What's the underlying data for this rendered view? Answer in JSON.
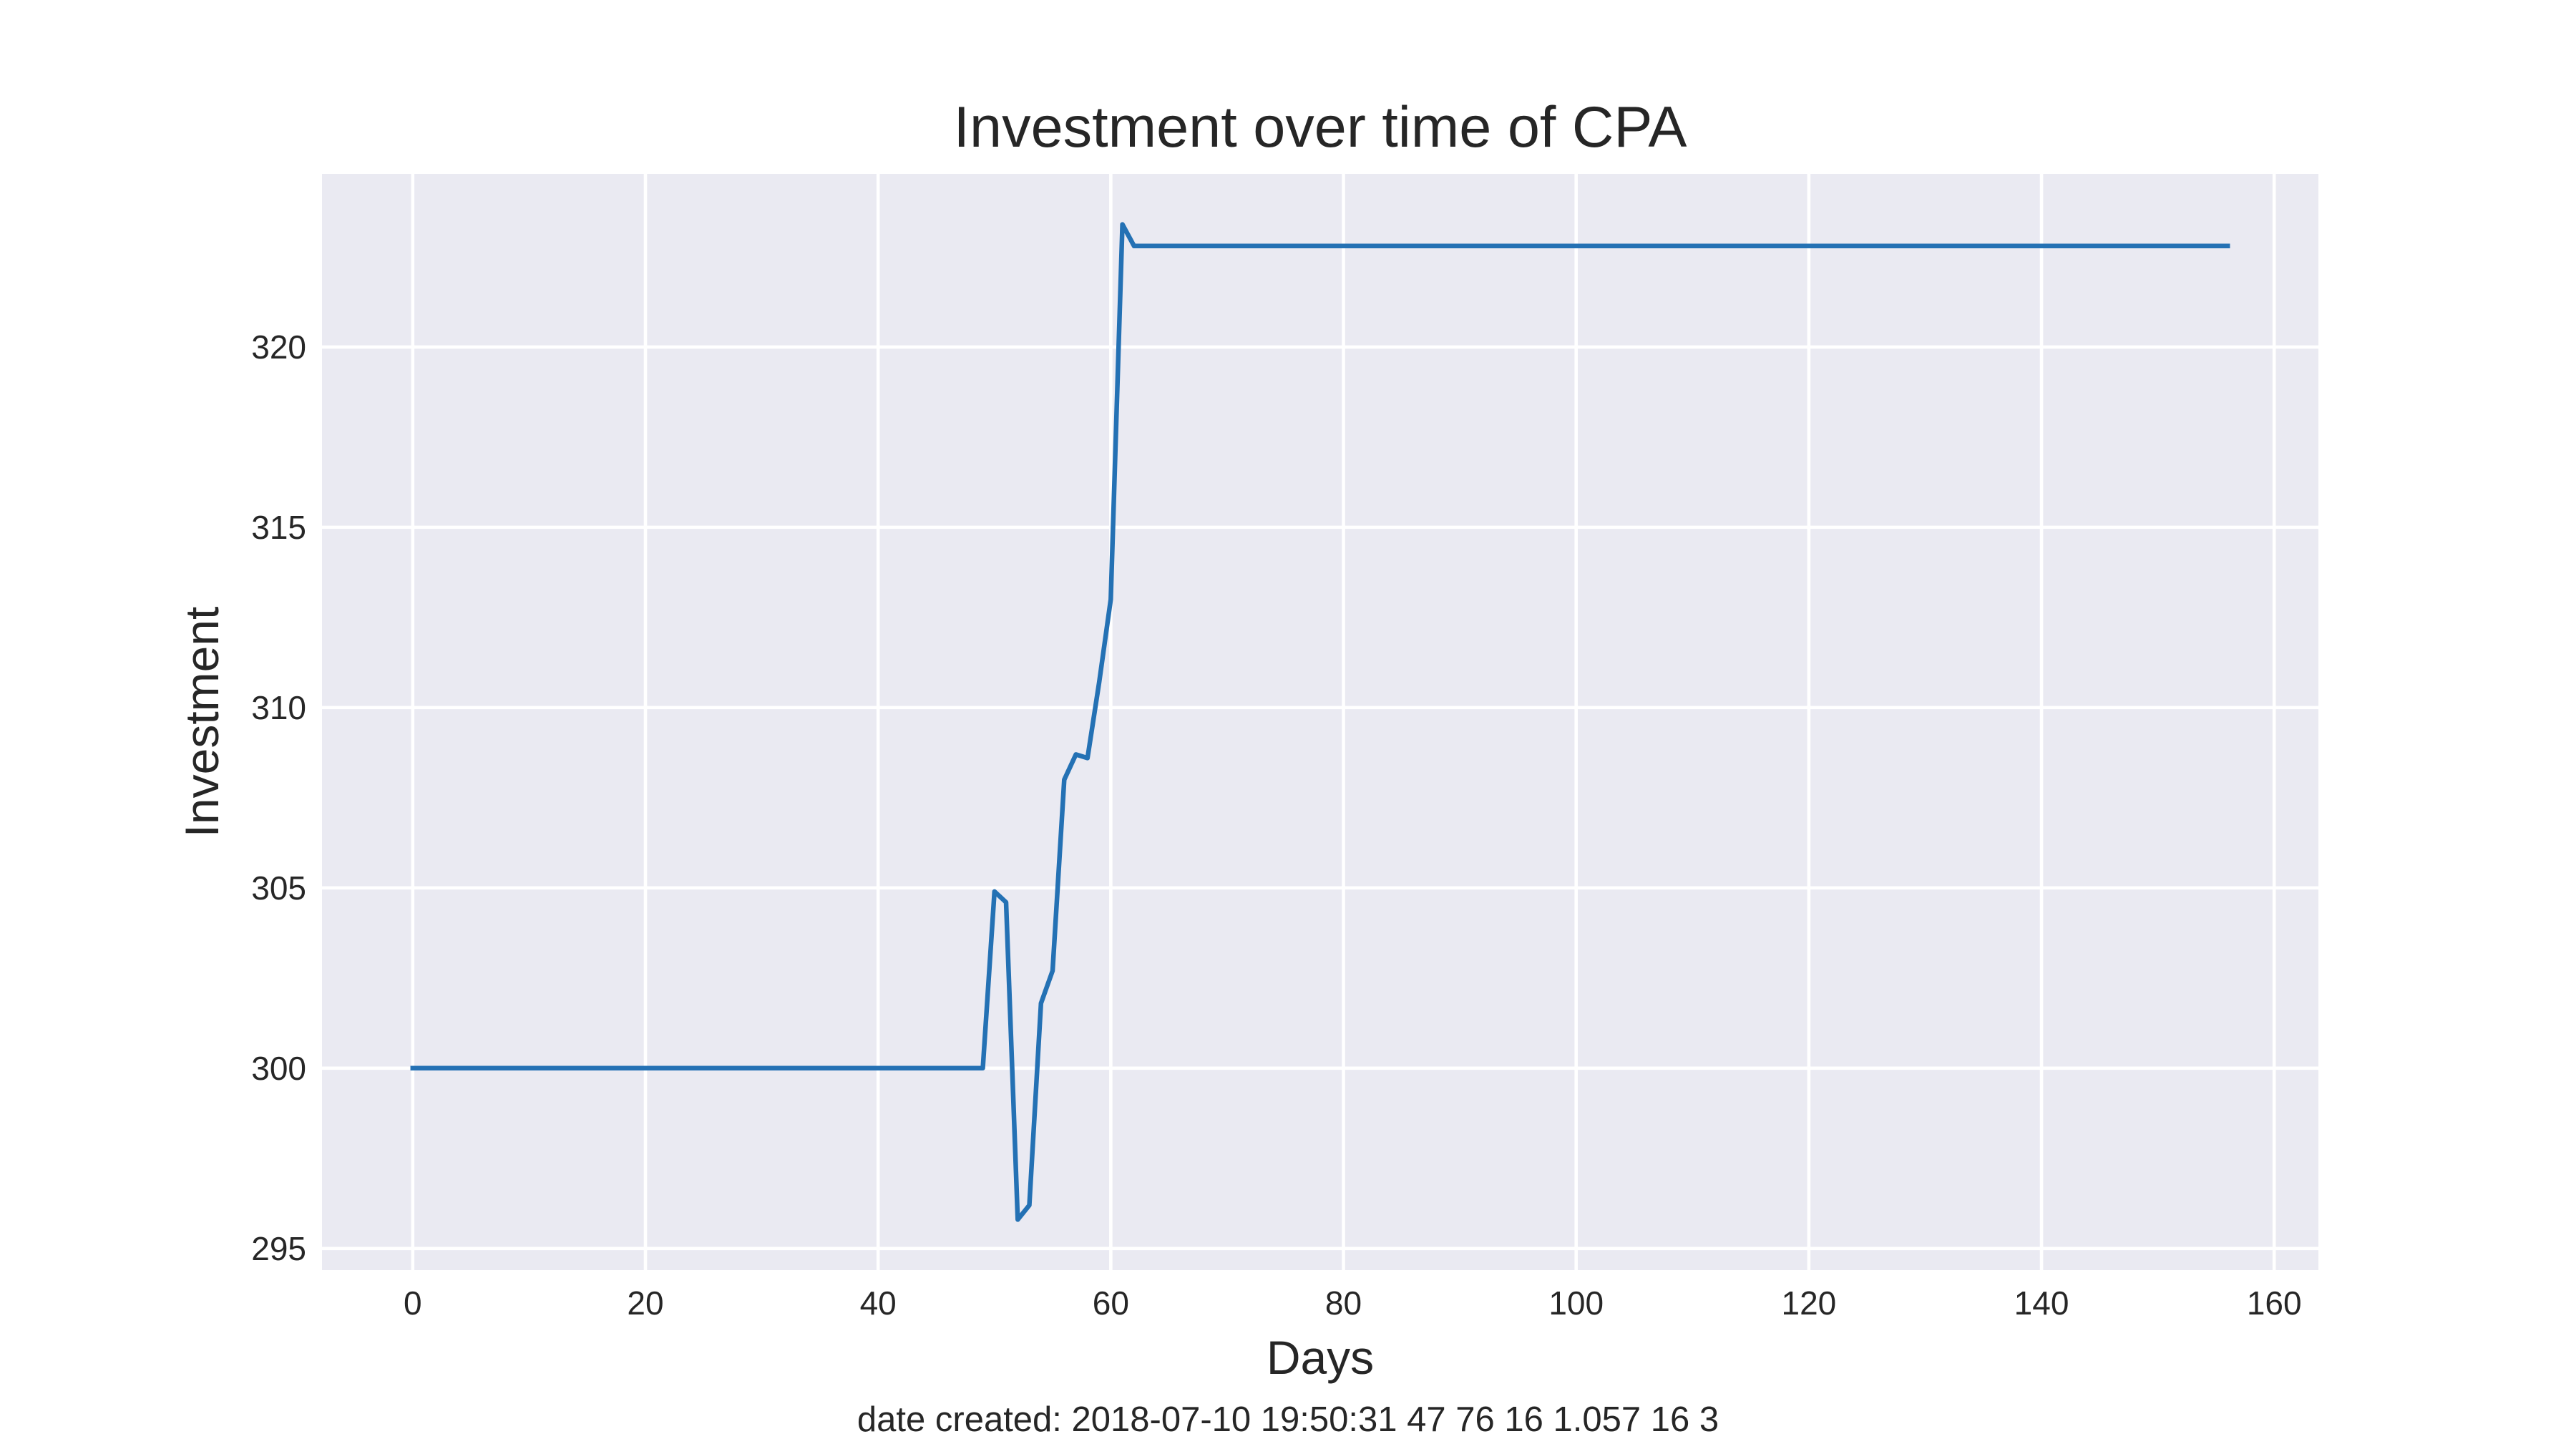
{
  "chart_data": {
    "type": "line",
    "title": "Investment over time of CPA",
    "xlabel": "Days",
    "ylabel": "Investment",
    "xlim": [
      -7.8,
      163.8
    ],
    "ylim": [
      294.4,
      324.8
    ],
    "xticks": [
      0,
      20,
      40,
      60,
      80,
      100,
      120,
      140,
      160
    ],
    "yticks": [
      295,
      300,
      305,
      310,
      315,
      320
    ],
    "grid": true,
    "legend": "none",
    "colors": {
      "background": "#EAEAF2",
      "grid": "#FFFFFF",
      "line": "#2471B4"
    },
    "series": [
      {
        "x": [
          0,
          49,
          50,
          51,
          52,
          53,
          54,
          55,
          56,
          57,
          58,
          59,
          60,
          61,
          62,
          156
        ],
        "values": [
          300.0,
          300.0,
          304.9,
          304.6,
          295.8,
          296.2,
          301.8,
          302.7,
          308.0,
          308.7,
          308.6,
          310.7,
          313.0,
          323.4,
          322.8,
          322.8
        ]
      }
    ],
    "footer": "date created: 2018-07-10 19:50:31 47 76 16 1.057 16 3"
  }
}
